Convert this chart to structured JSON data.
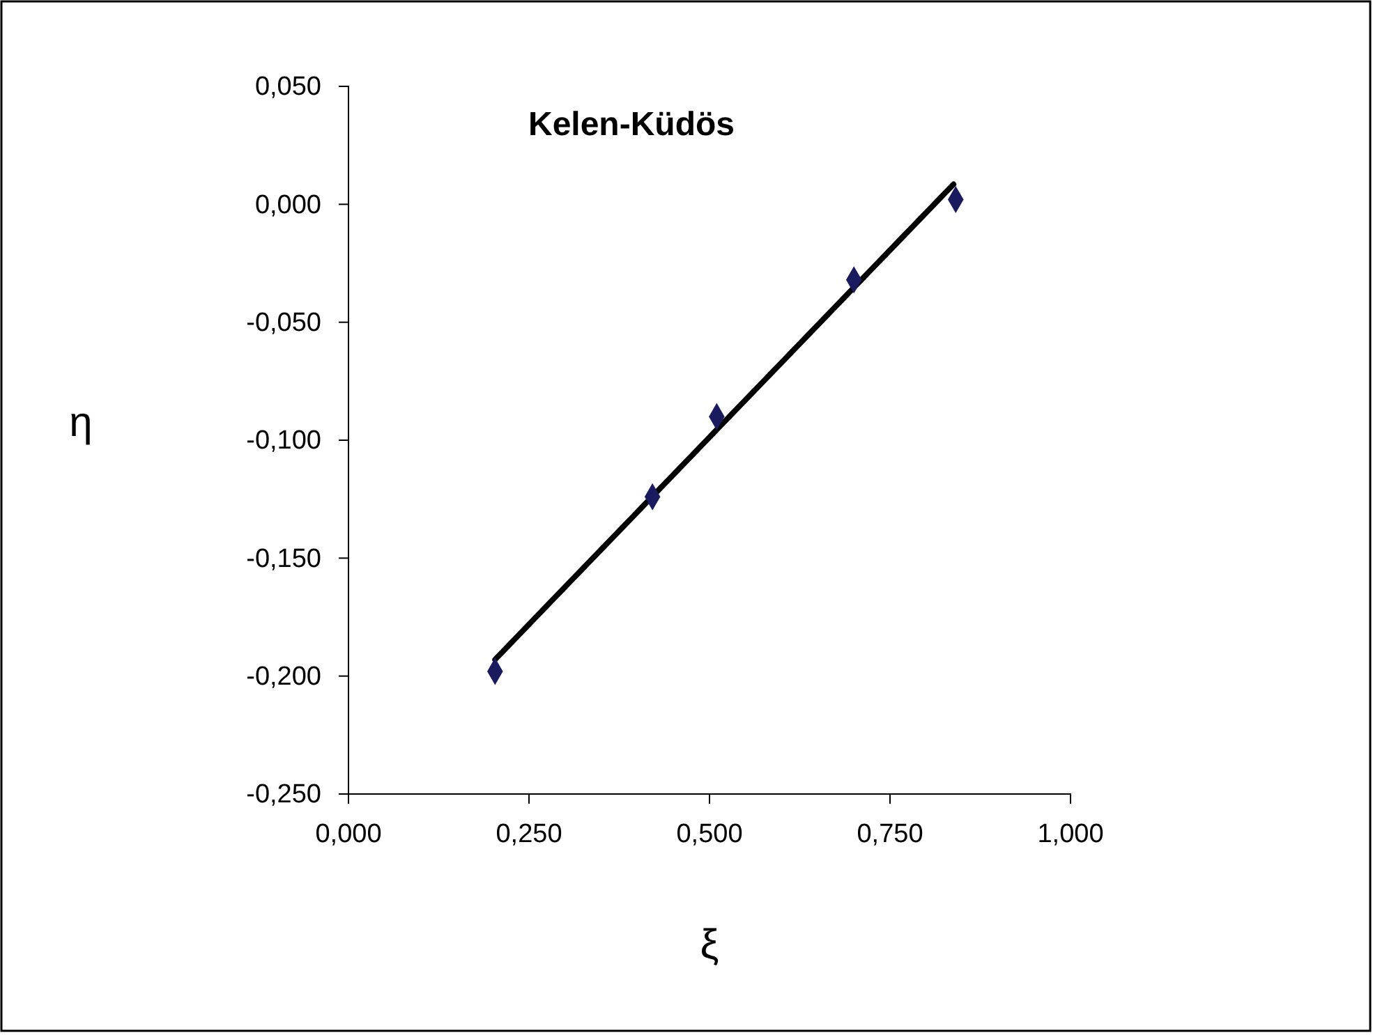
{
  "chart_data": {
    "type": "scatter",
    "title": "Kelen-Küdös",
    "xlabel": "ξ",
    "ylabel": "η",
    "xlim": [
      0,
      1
    ],
    "xticks": [
      {
        "value": 0,
        "label": "0,000"
      },
      {
        "value": 0.25,
        "label": "0,250"
      },
      {
        "value": 0.5,
        "label": "0,500"
      },
      {
        "value": 0.75,
        "label": "0,750"
      },
      {
        "value": 1,
        "label": "1,000"
      }
    ],
    "ylim": [
      -0.25,
      0.05
    ],
    "yticks": [
      {
        "value": -0.25,
        "label": "-0,250"
      },
      {
        "value": -0.2,
        "label": "-0,200"
      },
      {
        "value": -0.15,
        "label": "-0,150"
      },
      {
        "value": -0.1,
        "label": "-0,100"
      },
      {
        "value": -0.05,
        "label": "-0,050"
      },
      {
        "value": 0,
        "label": "0,000"
      },
      {
        "value": 0.05,
        "label": "0,050"
      }
    ],
    "grid": false,
    "marker": "diamond",
    "series": [
      {
        "color": "#1a1a5e",
        "x": [
          0.203,
          0.421,
          0.51,
          0.7,
          0.841
        ],
        "values": [
          -0.198,
          -0.124,
          -0.09,
          -0.032,
          0.002
        ]
      },
      {
        "type": "line",
        "color": "#000000",
        "x": [
          0.203,
          0.838
        ],
        "values": [
          -0.193,
          0.0085
        ],
        "marker": "none",
        "line_style": "solid"
      }
    ]
  }
}
